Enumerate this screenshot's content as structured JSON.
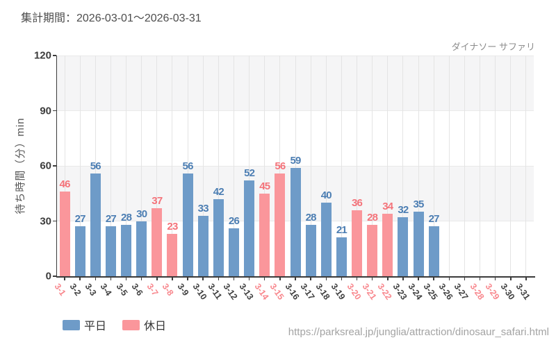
{
  "header": {
    "period_label": "集計期間：2026-03-01〜2026-03-31"
  },
  "chart_data": {
    "type": "bar",
    "title": "ダイナソー サファリ",
    "ylabel": "待ち時間（分）min",
    "ylim": [
      0,
      120
    ],
    "yticks": [
      0,
      30,
      60,
      90,
      120
    ],
    "grid": true,
    "legend_position": "bottom-left",
    "categories": [
      "3-1",
      "3-2",
      "3-3",
      "3-4",
      "3-5",
      "3-6",
      "3-7",
      "3-8",
      "3-9",
      "3-10",
      "3-11",
      "3-12",
      "3-13",
      "3-14",
      "3-15",
      "3-16",
      "3-17",
      "3-18",
      "3-19",
      "3-20",
      "3-21",
      "3-22",
      "3-23",
      "3-24",
      "3-25",
      "3-26",
      "3-27",
      "3-28",
      "3-29",
      "3-30",
      "3-31"
    ],
    "values": [
      46,
      27,
      56,
      27,
      28,
      30,
      37,
      23,
      56,
      33,
      42,
      26,
      52,
      45,
      56,
      59,
      28,
      40,
      21,
      36,
      28,
      34,
      32,
      35,
      27,
      null,
      null,
      null,
      null,
      null,
      null
    ],
    "day_types": [
      "holiday",
      "weekday",
      "weekday",
      "weekday",
      "weekday",
      "weekday",
      "holiday",
      "holiday",
      "weekday",
      "weekday",
      "weekday",
      "weekday",
      "weekday",
      "holiday",
      "holiday",
      "weekday",
      "weekday",
      "weekday",
      "weekday",
      "holiday",
      "holiday",
      "holiday",
      "weekday",
      "weekday",
      "weekday",
      "weekday",
      "weekday",
      "holiday",
      "holiday",
      "weekday",
      "weekday"
    ],
    "legend": [
      {
        "key": "weekday",
        "label": "平日"
      },
      {
        "key": "holiday",
        "label": "休日"
      }
    ]
  },
  "colors": {
    "weekday_bar": "#6e9bc8",
    "weekday_value_label": "#4c7eb3",
    "holiday_bar": "#fa969b",
    "holiday_value_label": "#f4737a",
    "weekday_axis_label": "#3f3f3f",
    "holiday_axis_label": "#f8878d",
    "band_fill": "#f5f5f6",
    "grid_line": "#e4e4e4",
    "grid_line_h": "#e9e9e9",
    "axis_line": "#3a3a3a"
  },
  "footer": {
    "source_url": "https://parksreal.jp/junglia/attraction/dinosaur_safari.html"
  }
}
